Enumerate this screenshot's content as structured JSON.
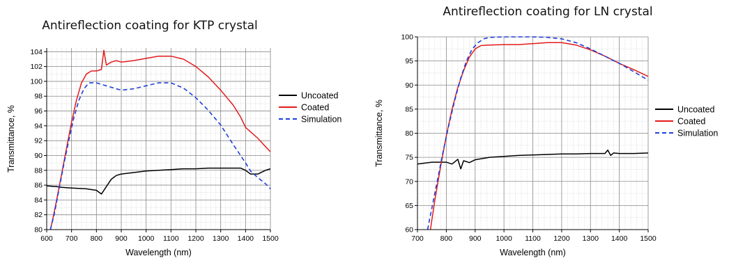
{
  "chart_data": [
    {
      "type": "line",
      "title": "Antireflection coating for KTP crystal",
      "xlabel": "Wavelength (nm)",
      "ylabel": "Transmittance, %",
      "xlim": [
        600,
        1500
      ],
      "ylim": [
        80,
        104.5
      ],
      "xticks": [
        600,
        700,
        800,
        900,
        1000,
        1100,
        1200,
        1300,
        1400,
        1500
      ],
      "yticks": [
        80,
        82,
        84,
        86,
        88,
        90,
        92,
        94,
        96,
        98,
        100,
        102,
        104
      ],
      "grid": true,
      "legend_position": "right",
      "series": [
        {
          "name": "Uncoated",
          "color": "#000000",
          "dash": "solid",
          "x": [
            600,
            640,
            660,
            700,
            760,
            800,
            820,
            840,
            860,
            880,
            900,
            950,
            1000,
            1050,
            1100,
            1150,
            1200,
            1250,
            1300,
            1350,
            1380,
            1400,
            1420,
            1450,
            1480,
            1500
          ],
          "y": [
            85.9,
            85.8,
            85.7,
            85.6,
            85.5,
            85.3,
            84.8,
            85.8,
            86.8,
            87.3,
            87.5,
            87.7,
            87.9,
            88.0,
            88.1,
            88.2,
            88.2,
            88.3,
            88.3,
            88.3,
            88.3,
            88.0,
            87.5,
            87.5,
            88.0,
            88.2
          ]
        },
        {
          "name": "Coated",
          "color": "#e31a1c",
          "dash": "solid",
          "x": [
            615,
            625,
            640,
            660,
            680,
            700,
            720,
            740,
            760,
            780,
            800,
            820,
            830,
            840,
            860,
            880,
            900,
            950,
            1000,
            1050,
            1100,
            1150,
            1200,
            1250,
            1300,
            1350,
            1380,
            1400,
            1420,
            1450,
            1480,
            1500
          ],
          "y": [
            80.0,
            81.5,
            84.0,
            87.5,
            91.0,
            94.5,
            97.5,
            99.8,
            101.0,
            101.4,
            101.4,
            101.6,
            104.2,
            102.2,
            102.6,
            102.8,
            102.6,
            102.8,
            103.1,
            103.4,
            103.4,
            103.0,
            102.0,
            100.6,
            98.8,
            96.8,
            95.2,
            93.8,
            93.2,
            92.3,
            91.2,
            90.5
          ]
        },
        {
          "name": "Simulation",
          "color": "#1f3fd8",
          "dash": "dashed",
          "x": [
            615,
            630,
            650,
            670,
            690,
            710,
            730,
            750,
            770,
            800,
            850,
            900,
            950,
            1000,
            1050,
            1100,
            1150,
            1200,
            1250,
            1300,
            1350,
            1400,
            1420,
            1450,
            1480,
            1500
          ],
          "y": [
            80.0,
            82.0,
            85.5,
            89.0,
            92.2,
            95.2,
            97.5,
            99.0,
            99.8,
            99.8,
            99.3,
            98.8,
            99.0,
            99.4,
            99.8,
            99.8,
            99.1,
            97.8,
            96.1,
            94.1,
            91.5,
            89.0,
            87.9,
            87.0,
            86.2,
            85.5
          ]
        }
      ]
    },
    {
      "type": "line",
      "title": "Antireflection coating for LN crystal",
      "xlabel": "Wavelength (nm)",
      "ylabel": "Transmittance, %",
      "xlim": [
        700,
        1500
      ],
      "ylim": [
        60,
        100
      ],
      "xticks": [
        700,
        800,
        900,
        1000,
        1100,
        1200,
        1300,
        1400,
        1500
      ],
      "yticks": [
        60,
        65,
        70,
        75,
        80,
        85,
        90,
        95,
        100
      ],
      "grid": true,
      "legend_position": "right",
      "series": [
        {
          "name": "Uncoated",
          "color": "#000000",
          "dash": "solid",
          "x": [
            700,
            750,
            800,
            820,
            840,
            850,
            860,
            880,
            900,
            950,
            1000,
            1050,
            1100,
            1150,
            1200,
            1250,
            1300,
            1350,
            1360,
            1370,
            1380,
            1400,
            1450,
            1500
          ],
          "y": [
            73.6,
            74.0,
            74.0,
            73.6,
            74.6,
            72.6,
            74.3,
            73.9,
            74.5,
            75.0,
            75.2,
            75.4,
            75.5,
            75.6,
            75.7,
            75.7,
            75.8,
            75.8,
            76.5,
            75.4,
            75.9,
            75.8,
            75.8,
            75.9
          ]
        },
        {
          "name": "Coated",
          "color": "#e31a1c",
          "dash": "solid",
          "x": [
            745,
            760,
            780,
            800,
            820,
            840,
            860,
            880,
            900,
            920,
            950,
            1000,
            1050,
            1100,
            1150,
            1200,
            1250,
            1300,
            1350,
            1400,
            1450,
            1500
          ],
          "y": [
            60.0,
            66.0,
            73.0,
            79.5,
            85.0,
            89.5,
            93.0,
            95.8,
            97.5,
            98.2,
            98.3,
            98.4,
            98.4,
            98.6,
            98.8,
            98.8,
            98.3,
            97.3,
            96.0,
            94.5,
            93.2,
            91.8
          ]
        },
        {
          "name": "Simulation",
          "color": "#1f3fd8",
          "dash": "dashed",
          "x": [
            735,
            750,
            770,
            790,
            810,
            830,
            850,
            870,
            890,
            910,
            930,
            950,
            1000,
            1050,
            1100,
            1150,
            1200,
            1250,
            1300,
            1350,
            1400,
            1450,
            1500
          ],
          "y": [
            60.0,
            64.5,
            70.5,
            76.5,
            82.0,
            87.0,
            91.5,
            95.0,
            97.5,
            98.8,
            99.6,
            99.9,
            100.0,
            100.0,
            100.0,
            99.9,
            99.6,
            98.8,
            97.5,
            96.0,
            94.5,
            92.8,
            91.0
          ]
        }
      ]
    }
  ]
}
